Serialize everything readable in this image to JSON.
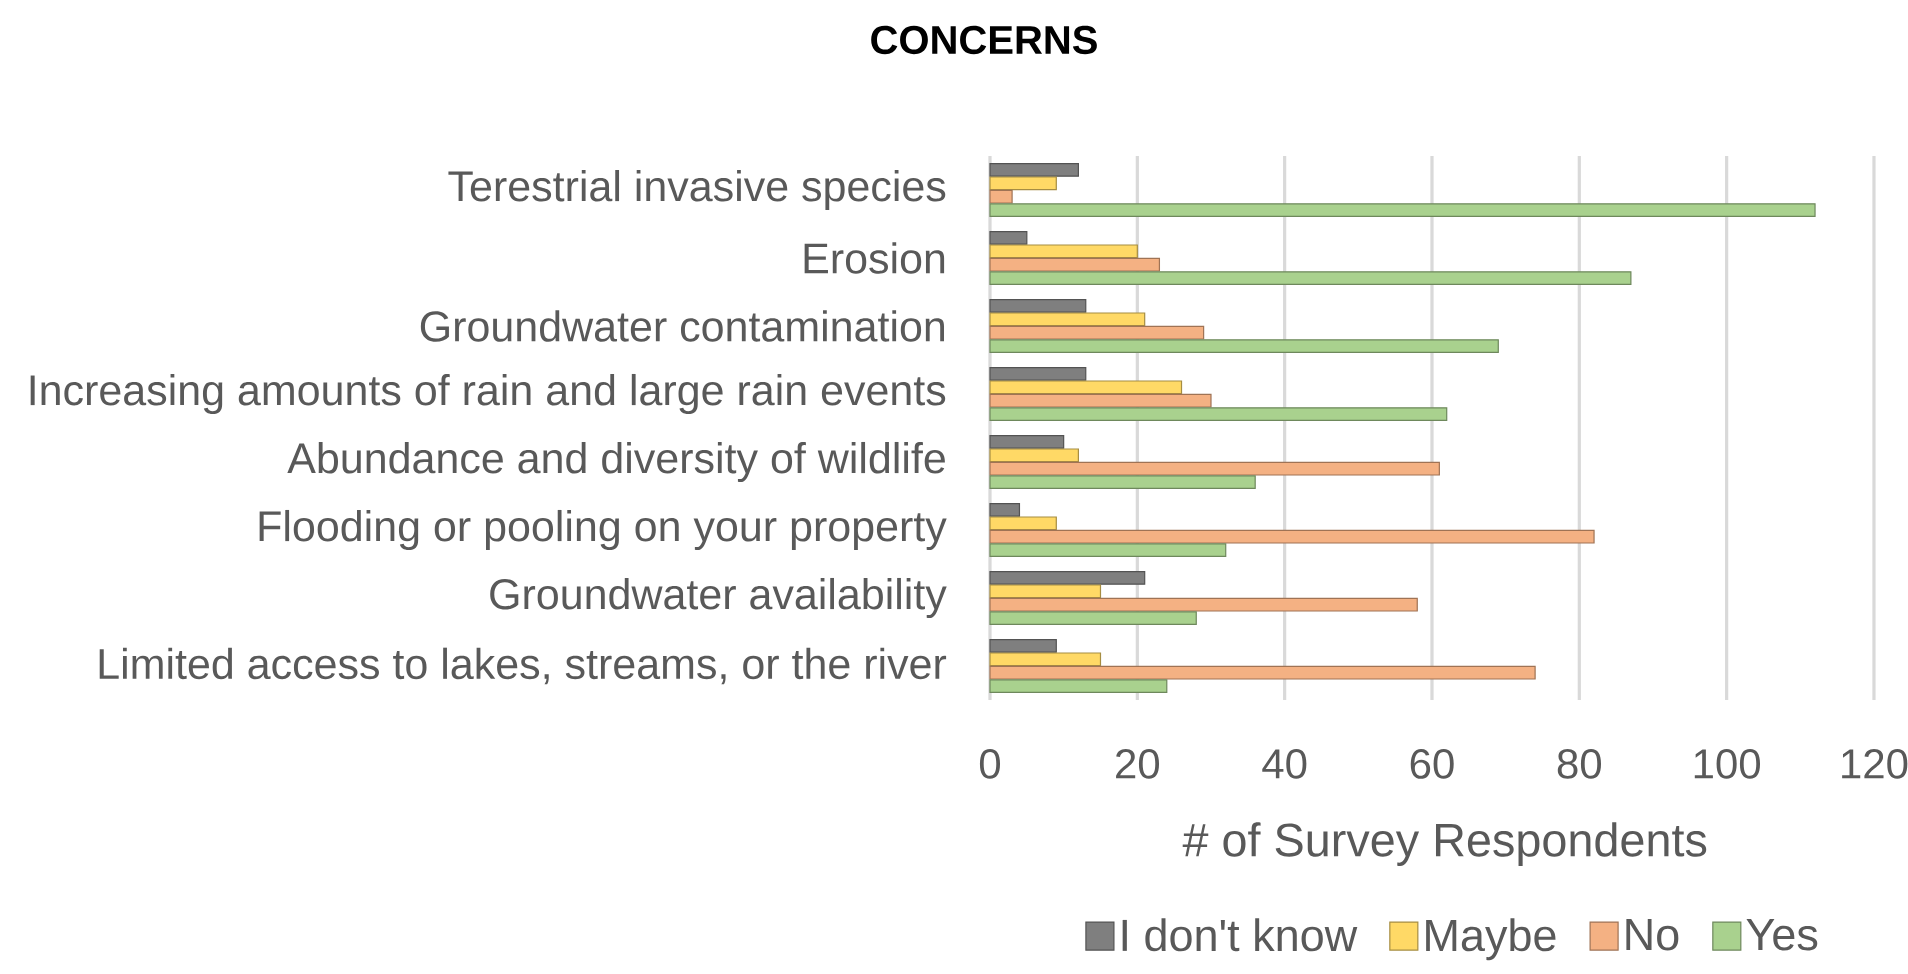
{
  "chart_data": {
    "type": "bar",
    "orientation": "horizontal",
    "title": "CONCERNS",
    "xlabel": "# of Survey Respondents",
    "categories": [
      "Terestrial invasive species",
      "Erosion",
      "Groundwater contamination",
      "Increasing amounts of rain and large rain events",
      "Abundance and diversity of wildlife",
      "Flooding or pooling on your property",
      "Groundwater availability",
      "Limited access to lakes, streams, or the river"
    ],
    "series": [
      {
        "name": "I don't know",
        "color": "#7f7f7f",
        "values": [
          12,
          5,
          13,
          13,
          10,
          4,
          21,
          9
        ]
      },
      {
        "name": "Maybe",
        "color": "#ffd966",
        "values": [
          9,
          20,
          21,
          26,
          12,
          9,
          15,
          15
        ]
      },
      {
        "name": "No",
        "color": "#f4b183",
        "values": [
          3,
          23,
          29,
          30,
          61,
          82,
          58,
          74
        ]
      },
      {
        "name": "Yes",
        "color": "#a9d18e",
        "values": [
          112,
          87,
          69,
          62,
          36,
          32,
          28,
          24
        ]
      }
    ],
    "xlim": [
      0,
      120
    ],
    "xticks": [
      0,
      20,
      40,
      60,
      80,
      100,
      120
    ],
    "grid": "x",
    "legend": "bottom"
  }
}
